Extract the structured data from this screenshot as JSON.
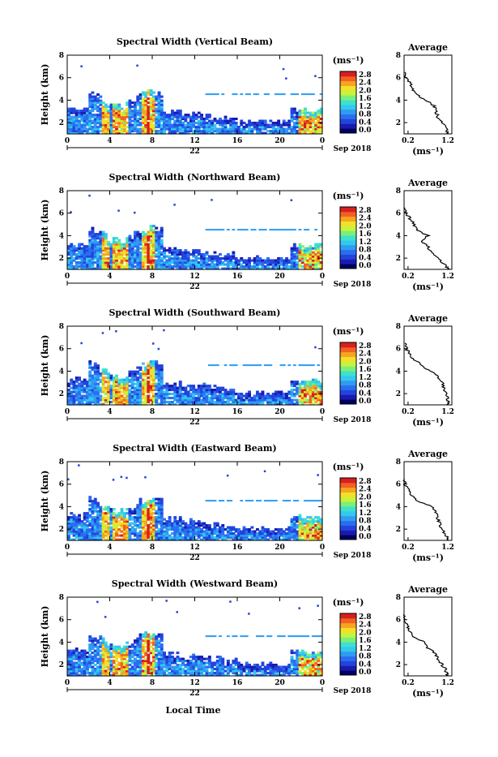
{
  "figure": {
    "bottom_label": "Local Time",
    "day_label": "22",
    "date_label": "Sep 2018",
    "unit_label": "(ms⁻¹)",
    "avg_unit_label": "(ms⁻¹)",
    "avg_title": "Average",
    "height_label": "Height (km)"
  },
  "colorbar": {
    "tick_labels": [
      "2.8",
      "2.4",
      "2.0",
      "1.6",
      "1.2",
      "0.8",
      "0.4",
      "0.0"
    ],
    "colors": [
      "#000060",
      "#1a1ab0",
      "#2244dd",
      "#2a6ef0",
      "#2f9cf2",
      "#33c8ee",
      "#3fe0cc",
      "#7af07a",
      "#c8f23c",
      "#f2e02a",
      "#f7a41f",
      "#f26022",
      "#d81e1e"
    ]
  },
  "chart_data": [
    {
      "type": "heatmap",
      "title": "Spectral Width (Vertical Beam)",
      "xlabel": "",
      "ylabel": "Height (km)",
      "x_ticks": [
        "0",
        "4",
        "8",
        "12",
        "16",
        "20",
        "0"
      ],
      "y_ticks": [
        "2",
        "4",
        "6",
        "8"
      ],
      "xlim": [
        0,
        24
      ],
      "ylim": [
        1,
        8
      ],
      "colorbar": {
        "label": "(ms⁻¹)",
        "range": [
          0,
          2.8
        ]
      },
      "average_profile": {
        "title": "Average",
        "xlabel": "(ms⁻¹)",
        "x_ticks": [
          "0.2",
          "1.2"
        ],
        "xlim": [
          0.1,
          1.3
        ],
        "y_ticks": [
          "2",
          "4",
          "6",
          "8"
        ],
        "ylim": [
          1,
          8
        ],
        "points": [
          [
            1.2,
            1.0
          ],
          [
            1.15,
            1.5
          ],
          [
            1.05,
            2.0
          ],
          [
            0.95,
            2.5
          ],
          [
            0.9,
            3.0
          ],
          [
            0.85,
            3.5
          ],
          [
            0.65,
            4.0
          ],
          [
            0.4,
            4.5
          ],
          [
            0.3,
            5.0
          ],
          [
            0.25,
            5.5
          ],
          [
            0.15,
            6.0
          ],
          [
            0.12,
            6.5
          ]
        ]
      }
    },
    {
      "type": "heatmap",
      "title": "Spectral Width (Northward Beam)",
      "xlabel": "",
      "ylabel": "Height (km)",
      "x_ticks": [
        "0",
        "4",
        "8",
        "12",
        "16",
        "20",
        "0"
      ],
      "y_ticks": [
        "2",
        "4",
        "6",
        "8"
      ],
      "xlim": [
        0,
        24
      ],
      "ylim": [
        1,
        8
      ],
      "colorbar": {
        "label": "(ms⁻¹)",
        "range": [
          0,
          2.8
        ]
      },
      "average_profile": {
        "title": "Average",
        "xlabel": "(ms⁻¹)",
        "x_ticks": [
          "0.2",
          "1.2"
        ],
        "xlim": [
          0.1,
          1.3
        ],
        "y_ticks": [
          "2",
          "4",
          "6",
          "8"
        ],
        "ylim": [
          1,
          8
        ],
        "points": [
          [
            1.2,
            1.0
          ],
          [
            1.1,
            1.5
          ],
          [
            0.95,
            2.0
          ],
          [
            0.8,
            2.5
          ],
          [
            0.7,
            3.0
          ],
          [
            0.55,
            3.5
          ],
          [
            0.7,
            4.0
          ],
          [
            0.45,
            4.5
          ],
          [
            0.35,
            5.0
          ],
          [
            0.25,
            5.5
          ],
          [
            0.15,
            6.0
          ],
          [
            0.12,
            6.5
          ]
        ]
      }
    },
    {
      "type": "heatmap",
      "title": "Spectral Width (Southward Beam)",
      "xlabel": "",
      "ylabel": "Height (km)",
      "x_ticks": [
        "0",
        "4",
        "8",
        "12",
        "16",
        "20",
        "0"
      ],
      "y_ticks": [
        "2",
        "4",
        "6",
        "8"
      ],
      "xlim": [
        0,
        24
      ],
      "ylim": [
        1,
        8
      ],
      "colorbar": {
        "label": "(ms⁻¹)",
        "range": [
          0,
          2.8
        ]
      },
      "average_profile": {
        "title": "Average",
        "xlabel": "(ms⁻¹)",
        "x_ticks": [
          "0.2",
          "1.2"
        ],
        "xlim": [
          0.1,
          1.3
        ],
        "y_ticks": [
          "2",
          "4",
          "6",
          "8"
        ],
        "ylim": [
          1,
          8
        ],
        "points": [
          [
            1.2,
            1.0
          ],
          [
            1.2,
            1.5
          ],
          [
            1.15,
            2.0
          ],
          [
            1.1,
            2.5
          ],
          [
            1.05,
            3.0
          ],
          [
            0.95,
            3.5
          ],
          [
            0.75,
            4.0
          ],
          [
            0.55,
            4.5
          ],
          [
            0.35,
            5.0
          ],
          [
            0.25,
            5.5
          ],
          [
            0.15,
            6.0
          ],
          [
            0.12,
            6.5
          ]
        ]
      }
    },
    {
      "type": "heatmap",
      "title": "Spectral Width (Eastward Beam)",
      "xlabel": "",
      "ylabel": "Height (km)",
      "x_ticks": [
        "0",
        "4",
        "8",
        "12",
        "16",
        "20",
        "0"
      ],
      "y_ticks": [
        "2",
        "4",
        "6",
        "8"
      ],
      "xlim": [
        0,
        24
      ],
      "ylim": [
        1,
        8
      ],
      "colorbar": {
        "label": "(ms⁻¹)",
        "range": [
          0,
          2.8
        ]
      },
      "average_profile": {
        "title": "Average",
        "xlabel": "(ms⁻¹)",
        "x_ticks": [
          "0.2",
          "1.2"
        ],
        "xlim": [
          0.1,
          1.3
        ],
        "y_ticks": [
          "2",
          "4",
          "6",
          "8"
        ],
        "ylim": [
          1,
          8
        ],
        "points": [
          [
            1.2,
            1.0
          ],
          [
            1.15,
            1.5
          ],
          [
            1.05,
            2.0
          ],
          [
            1.0,
            2.5
          ],
          [
            0.95,
            3.0
          ],
          [
            0.9,
            3.5
          ],
          [
            0.8,
            4.0
          ],
          [
            0.45,
            4.5
          ],
          [
            0.3,
            5.0
          ],
          [
            0.2,
            5.5
          ],
          [
            0.12,
            6.0
          ],
          [
            0.1,
            6.5
          ]
        ]
      }
    },
    {
      "type": "heatmap",
      "title": "Spectral Width (Westward Beam)",
      "xlabel": "Local Time",
      "ylabel": "Height (km)",
      "x_ticks": [
        "0",
        "4",
        "8",
        "12",
        "16",
        "20",
        "0"
      ],
      "y_ticks": [
        "2",
        "4",
        "6",
        "8"
      ],
      "xlim": [
        0,
        24
      ],
      "ylim": [
        1,
        8
      ],
      "colorbar": {
        "label": "(ms⁻¹)",
        "range": [
          0,
          2.8
        ]
      },
      "average_profile": {
        "title": "Average",
        "xlabel": "(ms⁻¹)",
        "x_ticks": [
          "0.2",
          "1.2"
        ],
        "xlim": [
          0.1,
          1.3
        ],
        "y_ticks": [
          "2",
          "4",
          "6",
          "8"
        ],
        "ylim": [
          1,
          8
        ],
        "points": [
          [
            1.2,
            1.0
          ],
          [
            1.15,
            1.5
          ],
          [
            1.05,
            2.0
          ],
          [
            0.95,
            2.5
          ],
          [
            0.9,
            3.0
          ],
          [
            0.7,
            3.5
          ],
          [
            0.6,
            4.0
          ],
          [
            0.35,
            4.5
          ],
          [
            0.25,
            5.0
          ],
          [
            0.18,
            5.5
          ],
          [
            0.12,
            6.0
          ],
          [
            0.1,
            6.5
          ]
        ]
      }
    }
  ]
}
